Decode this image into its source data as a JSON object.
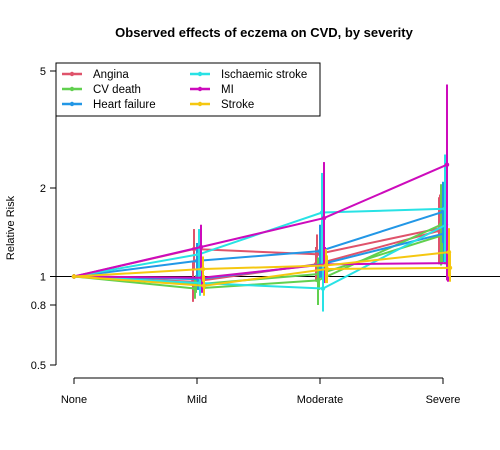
{
  "chart_data": {
    "type": "line",
    "title": "Observed effects of eczema on CVD, by severity",
    "xlabel": "",
    "ylabel": "Relative Risk",
    "y_scale": "log",
    "ylim": [
      0.5,
      5
    ],
    "yticks": [
      0.5,
      0.8,
      1,
      2,
      5
    ],
    "reference_line": 1,
    "categories": [
      "None",
      "Mild",
      "Moderate",
      "Severe"
    ],
    "legend_position": "top-left",
    "series": [
      {
        "name": "Angina",
        "color": "#DF536B",
        "lines": [
          {
            "values": [
              1,
              0.96,
              1.1,
              1.43
            ],
            "ci": [
              null,
              [
                0.82,
                1.12
              ],
              [
                0.96,
                1.26
              ],
              [
                1.1,
                1.86
              ]
            ]
          },
          {
            "values": [
              1,
              1.24,
              1.19,
              1.46
            ],
            "ci": [
              null,
              [
                1.06,
                1.45
              ],
              [
                1.02,
                1.39
              ],
              [
                1.12,
                1.9
              ]
            ]
          }
        ]
      },
      {
        "name": "CV death",
        "color": "#61D04F",
        "lines": [
          {
            "values": [
              1,
              0.91,
              0.97,
              1.5
            ],
            "ci": [
              null,
              [
                0.84,
                0.99
              ],
              [
                0.8,
                1.16
              ],
              [
                1.09,
                2.06
              ]
            ]
          },
          {
            "values": [
              1,
              0.94,
              1.02,
              1.38
            ],
            "ci": [
              null,
              [
                0.88,
                1.01
              ],
              [
                0.9,
                1.16
              ],
              [
                1.1,
                1.74
              ]
            ]
          }
        ]
      },
      {
        "name": "Heart failure",
        "color": "#2297E6",
        "lines": [
          {
            "values": [
              1,
              1.13,
              1.22,
              1.66
            ],
            "ci": [
              null,
              [
                0.98,
                1.3
              ],
              [
                0.99,
                1.5
              ],
              [
                1.3,
                2.1
              ]
            ]
          },
          {
            "values": [
              1,
              0.98,
              1.1,
              1.4
            ],
            "ci": [
              null,
              [
                0.9,
                1.06
              ],
              [
                0.99,
                1.22
              ],
              [
                1.12,
                1.75
              ]
            ]
          }
        ]
      },
      {
        "name": "Ischaemic stroke",
        "color": "#28E2E5",
        "lines": [
          {
            "values": [
              1,
              1.19,
              1.65,
              1.7
            ],
            "ci": [
              null,
              [
                0.98,
                1.45
              ],
              [
                1.1,
                2.25
              ],
              [
                1.1,
                2.6
              ]
            ]
          },
          {
            "values": [
              1,
              0.95,
              0.91,
              1.5
            ],
            "ci": [
              null,
              [
                0.86,
                1.05
              ],
              [
                0.76,
                1.08
              ],
              [
                1.1,
                2.05
              ]
            ]
          }
        ]
      },
      {
        "name": "MI",
        "color": "#CD0BBC",
        "lines": [
          {
            "values": [
              1,
              1.26,
              1.58,
              2.4
            ],
            "ci": [
              null,
              [
                1.05,
                1.5
              ],
              [
                1.1,
                2.45
              ],
              [
                0.97,
                4.5
              ]
            ]
          },
          {
            "values": [
              1,
              0.99,
              1.1,
              1.11
            ],
            "ci": [
              null,
              [
                0.88,
                1.12
              ],
              [
                0.95,
                1.26
              ],
              [
                0.96,
                1.3
              ]
            ]
          }
        ]
      },
      {
        "name": "Stroke",
        "color": "#F5C710",
        "lines": [
          {
            "values": [
              1,
              1.06,
              1.09,
              1.21
            ],
            "ci": [
              null,
              [
                0.96,
                1.17
              ],
              [
                0.95,
                1.24
              ],
              [
                1.0,
                1.46
              ]
            ]
          },
          {
            "values": [
              1,
              0.93,
              1.06,
              1.07
            ],
            "ci": [
              null,
              [
                0.86,
                1.01
              ],
              [
                0.95,
                1.18
              ],
              [
                0.96,
                1.2
              ]
            ]
          }
        ]
      }
    ]
  }
}
